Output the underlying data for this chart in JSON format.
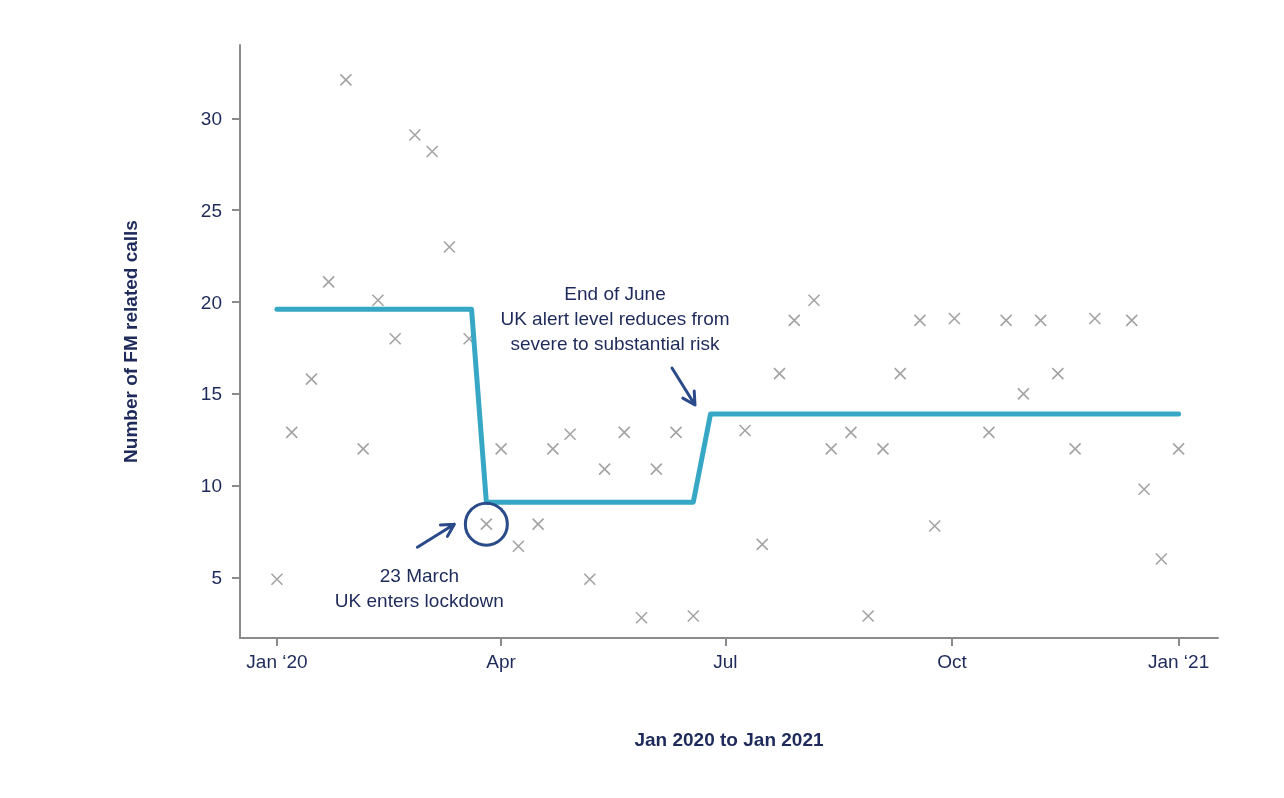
{
  "chart_data": {
    "type": "scatter",
    "xlabel": "Jan 2020 to Jan 2021",
    "ylabel": "Number of FM related calls",
    "xlim": [
      "2019-12-17",
      "2021-01-17"
    ],
    "xticks": [
      {
        "value": "2020-01-01",
        "label": "Jan ‘20"
      },
      {
        "value": "2020-04-01",
        "label": "Apr"
      },
      {
        "value": "2020-07-01",
        "label": "Jul"
      },
      {
        "value": "2020-10-01",
        "label": "Oct"
      },
      {
        "value": "2021-01-01",
        "label": "Jan ‘21"
      }
    ],
    "ylim": [
      1.7,
      34
    ],
    "yticks": [
      5,
      10,
      15,
      20,
      25,
      30
    ],
    "grid": false,
    "series": [
      {
        "marker": "cross",
        "color": "#8c8c8c",
        "x": [
          "2020-01-01",
          "2020-01-07",
          "2020-01-15",
          "2020-01-22",
          "2020-01-29",
          "2020-02-05",
          "2020-02-11",
          "2020-02-18",
          "2020-02-26",
          "2020-03-04",
          "2020-03-11",
          "2020-03-19",
          "2020-03-26",
          "2020-04-01",
          "2020-04-08",
          "2020-04-16",
          "2020-04-22",
          "2020-04-29",
          "2020-05-07",
          "2020-05-13",
          "2020-05-21",
          "2020-05-28",
          "2020-06-03",
          "2020-06-11",
          "2020-06-18",
          "2020-07-09",
          "2020-07-16",
          "2020-07-23",
          "2020-07-29",
          "2020-08-06",
          "2020-08-13",
          "2020-08-21",
          "2020-08-28",
          "2020-09-03",
          "2020-09-10",
          "2020-09-18",
          "2020-09-24",
          "2020-10-02",
          "2020-10-16",
          "2020-10-23",
          "2020-10-30",
          "2020-11-06",
          "2020-11-13",
          "2020-11-20",
          "2020-11-28",
          "2020-12-13",
          "2020-12-18",
          "2020-12-25",
          "2021-01-01"
        ],
        "values": [
          4.9,
          12.9,
          15.8,
          21.1,
          32.1,
          12.0,
          20.1,
          18.0,
          29.1,
          28.2,
          23.0,
          18.0,
          7.9,
          12.0,
          6.7,
          7.9,
          12.0,
          12.8,
          4.9,
          10.9,
          12.9,
          2.8,
          10.9,
          12.9,
          2.9,
          13.0,
          6.8,
          16.1,
          19.0,
          20.1,
          12.0,
          12.9,
          2.9,
          12.0,
          16.1,
          19.0,
          7.8,
          19.1,
          12.9,
          19.0,
          15.0,
          19.0,
          16.1,
          12.0,
          19.1,
          19.0,
          9.8,
          6.0,
          12.0
        ]
      },
      {
        "type": "line",
        "marker": "none",
        "color": "#36a7c4",
        "x": [
          "2020-01-01",
          "2020-03-20",
          "2020-03-26",
          "2020-06-18",
          "2020-06-25",
          "2021-01-01"
        ],
        "values": [
          19.6,
          19.6,
          9.1,
          9.1,
          13.9,
          13.9
        ]
      }
    ],
    "annotations": [
      {
        "text": "23 March\nUK enters lockdown",
        "x": "2020-03-26",
        "y": 7.9
      },
      "End of June\nUK alert level reduces from\nsevere to substantial risk"
    ]
  }
}
